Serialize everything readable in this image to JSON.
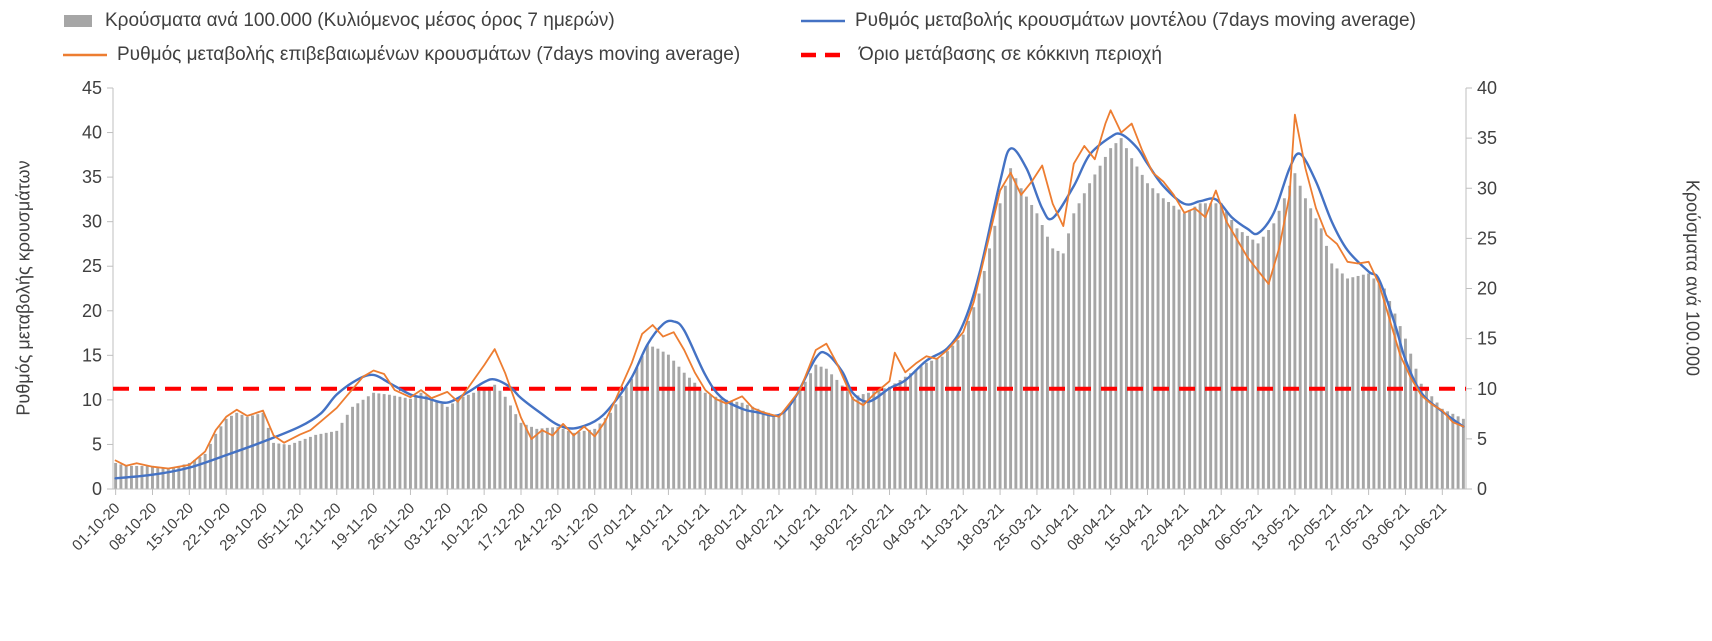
{
  "legend": {
    "items": [
      {
        "label": "Κρούσματα ανά 100.000 (Κυλιόμενος μέσος όρος 7 ημερών)",
        "type": "bar",
        "color": "#a6a6a6"
      },
      {
        "label": "Ρυθμός μεταβολής κρουσμάτων μοντέλου (7days moving average)",
        "type": "line",
        "color": "#4472c4"
      },
      {
        "label": "Ρυθμός μεταβολής επιβεβαιωμένων κρουσμάτων (7days moving average)",
        "type": "line",
        "color": "#ed7d31"
      },
      {
        "label": "Όριο μετάβασης σε κόκκινη περιοχή",
        "type": "dashed-line",
        "color": "#ff0000"
      }
    ]
  },
  "chart_data": {
    "type": "bar+line composite, dual y-axis, daily time series 01-10-2020 to mid-06-2021",
    "left_axis": {
      "label": "Ρυθμός μεταβολής κρουσμάτων",
      "min": 0,
      "max": 45,
      "ticks": [
        0,
        5,
        10,
        15,
        20,
        25,
        30,
        35,
        40,
        45
      ]
    },
    "right_axis": {
      "label": "Κρούσματα ανά 100.000",
      "min": 0,
      "max": 40,
      "ticks": [
        0,
        5,
        10,
        15,
        20,
        25,
        30,
        35,
        40
      ]
    },
    "x_ticks": [
      "01-10-20",
      "08-10-20",
      "15-10-20",
      "22-10-20",
      "29-10-20",
      "05-11-20",
      "12-11-20",
      "19-11-20",
      "26-11-20",
      "03-12-20",
      "10-12-20",
      "17-12-20",
      "24-12-20",
      "31-12-20",
      "07-01-21",
      "14-01-21",
      "21-01-21",
      "28-01-21",
      "04-02-21",
      "11-02-21",
      "18-02-21",
      "25-02-21",
      "04-03-21",
      "11-03-21",
      "18-03-21",
      "25-03-21",
      "01-04-21",
      "08-04-21",
      "15-04-21",
      "22-04-21",
      "29-04-21",
      "06-05-21",
      "13-05-21",
      "20-05-21",
      "27-05-21",
      "03-06-21",
      "10-06-21"
    ],
    "days_per_tick": 7,
    "max_day": 256,
    "grid": "off",
    "legend_position": "top",
    "threshold": {
      "label": "Όριο μετάβασης σε κόκκινη περιοχή",
      "value": 10,
      "axis": "right",
      "color": "#ff0000",
      "style": "dashed"
    },
    "series": [
      {
        "name": "Κρούσματα ανά 100.000 (Κυλιόμενος μέσος όρος 7 ημερών)",
        "type": "bar",
        "axis": "right",
        "color": "#a6a6a6",
        "points": [
          [
            0,
            2.6
          ],
          [
            2,
            2.3
          ],
          [
            7,
            2.3
          ],
          [
            10,
            2.0
          ],
          [
            14,
            2.6
          ],
          [
            17,
            3.5
          ],
          [
            19,
            5.5
          ],
          [
            21,
            7.0
          ],
          [
            23,
            7.6
          ],
          [
            25,
            7.2
          ],
          [
            28,
            7.6
          ],
          [
            30,
            4.6
          ],
          [
            33,
            4.4
          ],
          [
            35,
            4.8
          ],
          [
            38,
            5.4
          ],
          [
            42,
            5.8
          ],
          [
            45,
            8.2
          ],
          [
            49,
            9.6
          ],
          [
            52,
            9.4
          ],
          [
            56,
            9.0
          ],
          [
            58,
            9.6
          ],
          [
            61,
            8.8
          ],
          [
            63,
            8.2
          ],
          [
            66,
            9.2
          ],
          [
            70,
            10.0
          ],
          [
            72,
            10.4
          ],
          [
            74,
            9.2
          ],
          [
            77,
            6.6
          ],
          [
            80,
            6.0
          ],
          [
            84,
            6.2
          ],
          [
            87,
            5.6
          ],
          [
            91,
            6.0
          ],
          [
            94,
            7.6
          ],
          [
            98,
            11.0
          ],
          [
            101,
            14.4
          ],
          [
            103,
            14.0
          ],
          [
            105,
            13.4
          ],
          [
            108,
            11.6
          ],
          [
            112,
            9.6
          ],
          [
            115,
            9.0
          ],
          [
            119,
            8.6
          ],
          [
            122,
            8.0
          ],
          [
            126,
            7.2
          ],
          [
            129,
            9.0
          ],
          [
            133,
            12.4
          ],
          [
            135,
            12.0
          ],
          [
            140,
            9.2
          ],
          [
            143,
            9.6
          ],
          [
            147,
            10.2
          ],
          [
            150,
            11.2
          ],
          [
            154,
            12.6
          ],
          [
            157,
            13.2
          ],
          [
            161,
            15.4
          ],
          [
            164,
            19.5
          ],
          [
            168,
            28.5
          ],
          [
            170,
            32.0
          ],
          [
            172,
            30.0
          ],
          [
            175,
            27.5
          ],
          [
            178,
            24.0
          ],
          [
            180,
            23.5
          ],
          [
            182,
            27.5
          ],
          [
            185,
            30.5
          ],
          [
            189,
            34.0
          ],
          [
            191,
            35.0
          ],
          [
            193,
            33.0
          ],
          [
            196,
            30.5
          ],
          [
            199,
            29.0
          ],
          [
            203,
            27.5
          ],
          [
            206,
            28.5
          ],
          [
            210,
            28.5
          ],
          [
            213,
            26.0
          ],
          [
            217,
            24.5
          ],
          [
            220,
            26.5
          ],
          [
            224,
            31.5
          ],
          [
            226,
            29.0
          ],
          [
            229,
            26.0
          ],
          [
            231,
            22.5
          ],
          [
            234,
            21.0
          ],
          [
            238,
            21.5
          ],
          [
            241,
            20.0
          ],
          [
            245,
            15.0
          ],
          [
            248,
            10.5
          ],
          [
            252,
            8.0
          ],
          [
            256,
            7.0
          ]
        ]
      },
      {
        "name": "Ρυθμός μεταβολής κρουσμάτων μοντέλου (7days moving average)",
        "type": "line",
        "axis": "left",
        "color": "#4472c4",
        "smooth": true,
        "width": 2.4,
        "points": [
          [
            0,
            1.2
          ],
          [
            7,
            1.6
          ],
          [
            14,
            2.4
          ],
          [
            21,
            3.8
          ],
          [
            28,
            5.3
          ],
          [
            35,
            7.0
          ],
          [
            39,
            8.5
          ],
          [
            42,
            10.6
          ],
          [
            46,
            12.3
          ],
          [
            49,
            12.8
          ],
          [
            52,
            11.9
          ],
          [
            56,
            10.6
          ],
          [
            59,
            10.2
          ],
          [
            63,
            9.7
          ],
          [
            67,
            10.9
          ],
          [
            70,
            12.0
          ],
          [
            72,
            12.3
          ],
          [
            75,
            11.4
          ],
          [
            77,
            10.2
          ],
          [
            81,
            8.4
          ],
          [
            84,
            7.2
          ],
          [
            87,
            6.8
          ],
          [
            91,
            7.6
          ],
          [
            94,
            9.2
          ],
          [
            98,
            12.5
          ],
          [
            101,
            16.2
          ],
          [
            104,
            18.5
          ],
          [
            106,
            18.8
          ],
          [
            108,
            17.8
          ],
          [
            112,
            12.8
          ],
          [
            115,
            10.3
          ],
          [
            119,
            9.0
          ],
          [
            122,
            8.6
          ],
          [
            126,
            8.3
          ],
          [
            129,
            10.2
          ],
          [
            133,
            14.7
          ],
          [
            135,
            15.2
          ],
          [
            138,
            13.2
          ],
          [
            140,
            10.8
          ],
          [
            143,
            9.8
          ],
          [
            147,
            11.3
          ],
          [
            150,
            12.2
          ],
          [
            154,
            14.4
          ],
          [
            158,
            15.8
          ],
          [
            161,
            18.5
          ],
          [
            164,
            24.0
          ],
          [
            168,
            34.5
          ],
          [
            170,
            38.2
          ],
          [
            173,
            36.0
          ],
          [
            176,
            31.5
          ],
          [
            178,
            30.4
          ],
          [
            182,
            34.0
          ],
          [
            185,
            37.5
          ],
          [
            189,
            39.5
          ],
          [
            191,
            39.8
          ],
          [
            194,
            38.3
          ],
          [
            196,
            36.5
          ],
          [
            199,
            34.0
          ],
          [
            203,
            32.0
          ],
          [
            206,
            32.3
          ],
          [
            209,
            32.5
          ],
          [
            212,
            30.5
          ],
          [
            215,
            29.2
          ],
          [
            217,
            28.7
          ],
          [
            220,
            31.0
          ],
          [
            223,
            36.0
          ],
          [
            225,
            37.6
          ],
          [
            228,
            34.5
          ],
          [
            231,
            30.0
          ],
          [
            234,
            26.8
          ],
          [
            238,
            24.4
          ],
          [
            240,
            23.5
          ],
          [
            243,
            18.5
          ],
          [
            245,
            14.5
          ],
          [
            248,
            10.8
          ],
          [
            252,
            8.7
          ],
          [
            256,
            7.0
          ]
        ]
      },
      {
        "name": "Ρυθμός μεταβολής επιβεβαιωμένων κρουσμάτων (7days moving average)",
        "type": "line",
        "axis": "left",
        "color": "#ed7d31",
        "smooth": false,
        "width": 1.8,
        "points": [
          [
            0,
            3.2
          ],
          [
            2,
            2.6
          ],
          [
            4,
            2.9
          ],
          [
            7,
            2.5
          ],
          [
            10,
            2.3
          ],
          [
            14,
            2.7
          ],
          [
            17,
            4.2
          ],
          [
            19,
            6.6
          ],
          [
            21,
            8.1
          ],
          [
            23,
            8.9
          ],
          [
            25,
            8.2
          ],
          [
            28,
            8.8
          ],
          [
            30,
            6.0
          ],
          [
            32,
            5.2
          ],
          [
            35,
            6.1
          ],
          [
            37,
            6.6
          ],
          [
            39,
            7.6
          ],
          [
            42,
            9.1
          ],
          [
            45,
            11.2
          ],
          [
            47,
            12.6
          ],
          [
            49,
            13.3
          ],
          [
            51,
            12.9
          ],
          [
            53,
            11.1
          ],
          [
            56,
            10.3
          ],
          [
            58,
            11.1
          ],
          [
            60,
            10.2
          ],
          [
            63,
            10.9
          ],
          [
            65,
            9.8
          ],
          [
            67,
            11.4
          ],
          [
            70,
            13.9
          ],
          [
            72,
            15.7
          ],
          [
            74,
            13.0
          ],
          [
            77,
            8.0
          ],
          [
            79,
            5.6
          ],
          [
            81,
            6.6
          ],
          [
            83,
            6.0
          ],
          [
            85,
            7.3
          ],
          [
            87,
            6.0
          ],
          [
            89,
            7.0
          ],
          [
            91,
            5.9
          ],
          [
            93,
            7.6
          ],
          [
            95,
            10.1
          ],
          [
            98,
            14.1
          ],
          [
            100,
            17.4
          ],
          [
            102,
            18.4
          ],
          [
            104,
            17.1
          ],
          [
            106,
            17.6
          ],
          [
            108,
            15.6
          ],
          [
            110,
            13.1
          ],
          [
            112,
            11.1
          ],
          [
            114,
            10.1
          ],
          [
            116,
            9.6
          ],
          [
            119,
            10.4
          ],
          [
            121,
            9.1
          ],
          [
            123,
            8.6
          ],
          [
            126,
            8.1
          ],
          [
            128,
            9.6
          ],
          [
            130,
            11.1
          ],
          [
            133,
            15.6
          ],
          [
            135,
            16.3
          ],
          [
            137,
            14.1
          ],
          [
            140,
            10.1
          ],
          [
            142,
            9.4
          ],
          [
            144,
            10.6
          ],
          [
            147,
            12.1
          ],
          [
            148,
            15.3
          ],
          [
            150,
            13.1
          ],
          [
            152,
            14.1
          ],
          [
            154,
            14.9
          ],
          [
            156,
            14.6
          ],
          [
            158,
            15.6
          ],
          [
            161,
            17.6
          ],
          [
            163,
            21.0
          ],
          [
            165,
            26.0
          ],
          [
            168,
            33.5
          ],
          [
            170,
            35.5
          ],
          [
            172,
            33.0
          ],
          [
            174,
            34.5
          ],
          [
            176,
            36.3
          ],
          [
            178,
            32.0
          ],
          [
            180,
            29.5
          ],
          [
            182,
            36.5
          ],
          [
            184,
            38.5
          ],
          [
            186,
            37.0
          ],
          [
            188,
            41.0
          ],
          [
            189,
            42.5
          ],
          [
            191,
            40.0
          ],
          [
            193,
            41.0
          ],
          [
            195,
            38.0
          ],
          [
            197,
            35.5
          ],
          [
            199,
            34.5
          ],
          [
            201,
            33.0
          ],
          [
            203,
            31.0
          ],
          [
            205,
            31.5
          ],
          [
            207,
            30.5
          ],
          [
            209,
            33.5
          ],
          [
            211,
            30.0
          ],
          [
            213,
            28.0
          ],
          [
            215,
            26.0
          ],
          [
            217,
            24.5
          ],
          [
            219,
            23.0
          ],
          [
            221,
            27.0
          ],
          [
            223,
            33.0
          ],
          [
            224,
            42.0
          ],
          [
            226,
            36.0
          ],
          [
            228,
            31.5
          ],
          [
            230,
            28.5
          ],
          [
            232,
            27.5
          ],
          [
            234,
            25.5
          ],
          [
            236,
            25.3
          ],
          [
            238,
            25.5
          ],
          [
            240,
            23.0
          ],
          [
            242,
            19.0
          ],
          [
            244,
            15.0
          ],
          [
            246,
            12.5
          ],
          [
            248,
            10.5
          ],
          [
            250,
            9.5
          ],
          [
            252,
            8.8
          ],
          [
            254,
            7.5
          ],
          [
            256,
            7.0
          ]
        ]
      }
    ]
  }
}
